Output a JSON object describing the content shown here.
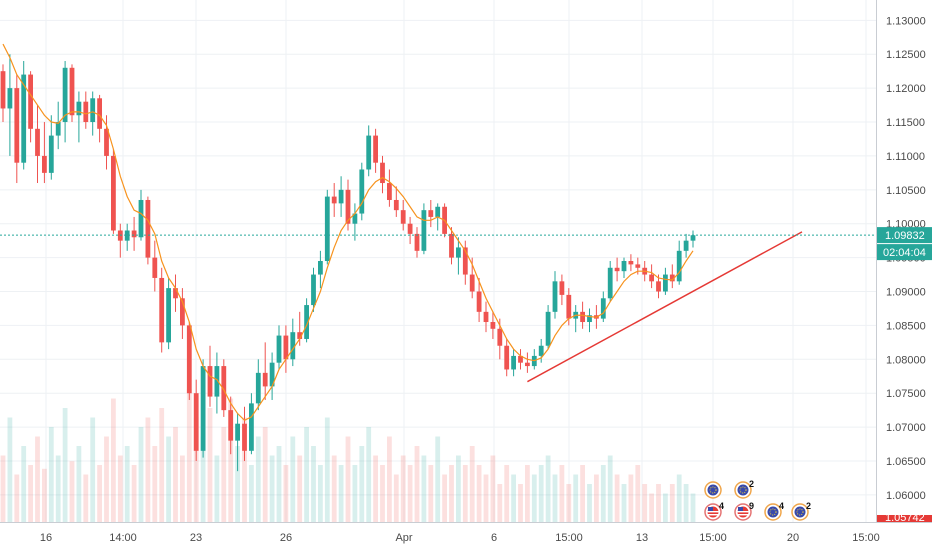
{
  "chart_data": {
    "type": "candlestick",
    "symbol_hint": "",
    "current_price": "1.09832",
    "countdown": "02:04:04",
    "bottom_price_tag": "1.05742",
    "y_ticks": [
      "1.13000",
      "1.12500",
      "1.12000",
      "1.11500",
      "1.11000",
      "1.10500",
      "1.10000",
      "1.09500",
      "1.09000",
      "1.08500",
      "1.08000",
      "1.07500",
      "1.07000",
      "1.06500",
      "1.06000"
    ],
    "y_tick_values": [
      1.13,
      1.125,
      1.12,
      1.115,
      1.11,
      1.105,
      1.1,
      1.095,
      1.09,
      1.085,
      1.08,
      1.075,
      1.07,
      1.065,
      1.06
    ],
    "ylim": [
      1.056,
      1.133
    ],
    "x_ticks": [
      "16",
      "14:00",
      "23",
      "26",
      "Apr",
      "6",
      "15:00",
      "13",
      "15:00",
      "20",
      "15:00"
    ],
    "grid": true,
    "colors": {
      "up": "#26a69a",
      "down": "#ef5350",
      "ma": "#f7931e",
      "trendline": "#e53935",
      "price_line": "#26a69a",
      "price_tag": "#26a69a",
      "bottom_tag": "#e53935",
      "grid": "#eef1f4"
    },
    "candles_ohlc": [
      [
        1.1225,
        1.1235,
        1.115,
        1.117
      ],
      [
        1.117,
        1.125,
        1.11,
        1.12
      ],
      [
        1.12,
        1.122,
        1.106,
        1.109
      ],
      [
        1.109,
        1.124,
        1.108,
        1.122
      ],
      [
        1.122,
        1.1225,
        1.112,
        1.114
      ],
      [
        1.114,
        1.1175,
        1.106,
        1.11
      ],
      [
        1.11,
        1.115,
        1.106,
        1.1075
      ],
      [
        1.1075,
        1.116,
        1.1065,
        1.113
      ],
      [
        1.113,
        1.118,
        1.111,
        1.115
      ],
      [
        1.115,
        1.124,
        1.112,
        1.123
      ],
      [
        1.123,
        1.1235,
        1.115,
        1.116
      ],
      [
        1.116,
        1.1195,
        1.112,
        1.118
      ],
      [
        1.118,
        1.1195,
        1.114,
        1.115
      ],
      [
        1.115,
        1.1195,
        1.113,
        1.1185
      ],
      [
        1.1185,
        1.119,
        1.112,
        1.114
      ],
      [
        1.114,
        1.116,
        1.108,
        1.11
      ],
      [
        1.11,
        1.111,
        1.0985,
        1.099
      ],
      [
        1.099,
        1.1,
        1.095,
        1.0975
      ],
      [
        1.0975,
        1.1,
        1.096,
        1.099
      ],
      [
        1.099,
        1.101,
        1.096,
        1.098
      ],
      [
        1.098,
        1.105,
        1.0975,
        1.1035
      ],
      [
        1.1035,
        1.104,
        1.094,
        1.095
      ],
      [
        1.095,
        1.0975,
        1.09,
        1.092
      ],
      [
        1.092,
        1.0935,
        1.081,
        1.0825
      ],
      [
        1.0825,
        1.092,
        1.0815,
        1.0905
      ],
      [
        1.0905,
        1.0925,
        1.087,
        1.089
      ],
      [
        1.089,
        1.0905,
        1.083,
        1.085
      ],
      [
        1.085,
        1.0855,
        1.074,
        1.075
      ],
      [
        1.075,
        1.077,
        1.065,
        1.0665
      ],
      [
        1.0665,
        1.08,
        1.0655,
        1.079
      ],
      [
        1.079,
        1.082,
        1.073,
        1.0745
      ],
      [
        1.0745,
        1.081,
        1.072,
        1.079
      ],
      [
        1.079,
        1.08,
        1.0715,
        1.0725
      ],
      [
        1.0725,
        1.0745,
        1.066,
        1.068
      ],
      [
        1.068,
        1.072,
        1.0635,
        1.0705
      ],
      [
        1.0705,
        1.073,
        1.065,
        1.0665
      ],
      [
        1.0665,
        1.075,
        1.066,
        1.0735
      ],
      [
        1.0735,
        1.08,
        1.0725,
        1.078
      ],
      [
        1.078,
        1.0825,
        1.074,
        1.076
      ],
      [
        1.076,
        1.081,
        1.074,
        1.0795
      ],
      [
        1.0795,
        1.085,
        1.0785,
        1.0835
      ],
      [
        1.0835,
        1.085,
        1.078,
        1.08
      ],
      [
        1.08,
        1.086,
        1.079,
        1.084
      ],
      [
        1.084,
        1.087,
        1.082,
        1.083
      ],
      [
        1.083,
        1.089,
        1.0825,
        1.088
      ],
      [
        1.088,
        1.0935,
        1.087,
        1.0925
      ],
      [
        1.0925,
        1.096,
        1.0905,
        1.0945
      ],
      [
        1.0945,
        1.105,
        1.094,
        1.104
      ],
      [
        1.104,
        1.106,
        1.101,
        1.103
      ],
      [
        1.103,
        1.107,
        1.101,
        1.105
      ],
      [
        1.105,
        1.1065,
        1.099,
        1.1
      ],
      [
        1.1,
        1.103,
        1.0975,
        1.1015
      ],
      [
        1.1015,
        1.109,
        1.1005,
        1.108
      ],
      [
        1.108,
        1.1145,
        1.107,
        1.113
      ],
      [
        1.113,
        1.114,
        1.1075,
        1.109
      ],
      [
        1.109,
        1.11,
        1.1045,
        1.106
      ],
      [
        1.106,
        1.108,
        1.1025,
        1.1035
      ],
      [
        1.1035,
        1.1055,
        1.101,
        1.102
      ],
      [
        1.102,
        1.1035,
        1.099,
        1.1
      ],
      [
        1.1,
        1.101,
        1.097,
        1.0985
      ],
      [
        1.0985,
        1.0995,
        1.095,
        1.096
      ],
      [
        1.096,
        1.103,
        1.0955,
        1.102
      ],
      [
        1.102,
        1.1035,
        1.0995,
        1.101
      ],
      [
        1.101,
        1.103,
        1.099,
        1.1025
      ],
      [
        1.1025,
        1.103,
        1.098,
        1.0985
      ],
      [
        1.0985,
        1.0995,
        1.094,
        1.095
      ],
      [
        1.095,
        1.098,
        1.0925,
        1.0965
      ],
      [
        1.0965,
        1.0975,
        1.091,
        1.0925
      ],
      [
        1.0925,
        1.095,
        1.089,
        1.09
      ],
      [
        1.09,
        1.092,
        1.0855,
        1.087
      ],
      [
        1.087,
        1.0885,
        1.084,
        1.0855
      ],
      [
        1.0855,
        1.087,
        1.083,
        1.0845
      ],
      [
        1.0845,
        1.086,
        1.08,
        1.082
      ],
      [
        1.082,
        1.083,
        1.0775,
        1.0785
      ],
      [
        1.0785,
        1.0815,
        1.0775,
        1.0805
      ],
      [
        1.0805,
        1.0815,
        1.0785,
        1.0795
      ],
      [
        1.0795,
        1.081,
        1.078,
        1.079
      ],
      [
        1.079,
        1.0815,
        1.0785,
        1.0805
      ],
      [
        1.0805,
        1.083,
        1.0795,
        1.082
      ],
      [
        1.082,
        1.088,
        1.0815,
        1.087
      ],
      [
        1.087,
        1.093,
        1.086,
        1.0915
      ],
      [
        1.0915,
        1.0925,
        1.088,
        1.0895
      ],
      [
        1.0895,
        1.0905,
        1.085,
        1.086
      ],
      [
        1.086,
        1.088,
        1.084,
        1.087
      ],
      [
        1.087,
        1.0885,
        1.0845,
        1.0855
      ],
      [
        1.0855,
        1.0875,
        1.084,
        1.0865
      ],
      [
        1.0865,
        1.088,
        1.0845,
        1.086
      ],
      [
        1.086,
        1.09,
        1.0855,
        1.089
      ],
      [
        1.089,
        1.0945,
        1.0885,
        1.0935
      ],
      [
        1.0935,
        1.095,
        1.0915,
        1.093
      ],
      [
        1.093,
        1.095,
        1.092,
        1.0945
      ],
      [
        1.0945,
        1.0955,
        1.093,
        1.094
      ],
      [
        1.094,
        1.095,
        1.0925,
        1.0935
      ],
      [
        1.0935,
        1.0945,
        1.0915,
        1.0925
      ],
      [
        1.0925,
        1.094,
        1.0905,
        1.0915
      ],
      [
        1.0915,
        1.0925,
        1.089,
        1.09
      ],
      [
        1.09,
        1.0935,
        1.0895,
        1.0925
      ],
      [
        1.0925,
        1.094,
        1.0905,
        1.0915
      ],
      [
        1.0915,
        1.0975,
        1.091,
        1.096
      ],
      [
        1.096,
        1.0985,
        1.095,
        1.0975
      ],
      [
        1.0975,
        1.099,
        1.0965,
        1.0983
      ]
    ],
    "ma": [
      1.1265,
      1.1245,
      1.122,
      1.1205,
      1.119,
      1.1175,
      1.116,
      1.115,
      1.1148,
      1.116,
      1.1165,
      1.1165,
      1.1162,
      1.1165,
      1.116,
      1.1145,
      1.111,
      1.107,
      1.104,
      1.102,
      1.1015,
      1.1005,
      1.0985,
      1.0945,
      1.092,
      1.0905,
      1.0885,
      1.0855,
      1.0815,
      1.079,
      1.0775,
      1.077,
      1.0755,
      1.0735,
      1.072,
      1.071,
      1.0715,
      1.073,
      1.0745,
      1.076,
      1.0785,
      1.08,
      1.0815,
      1.083,
      1.085,
      1.0875,
      1.09,
      1.0935,
      1.0965,
      1.099,
      1.1005,
      1.1015,
      1.103,
      1.105,
      1.1062,
      1.1068,
      1.1062,
      1.1052,
      1.104,
      1.1025,
      1.101,
      1.1005,
      1.1005,
      1.101,
      1.1005,
      1.099,
      1.0975,
      1.096,
      1.094,
      1.0915,
      1.089,
      1.087,
      1.085,
      1.083,
      1.0815,
      1.0805,
      1.08,
      1.0798,
      1.0802,
      1.0815,
      1.0835,
      1.085,
      1.086,
      1.0865,
      1.0865,
      1.0863,
      1.0862,
      1.0868,
      1.0885,
      1.09,
      1.0915,
      1.0925,
      1.093,
      1.093,
      1.0928,
      1.092,
      1.0918,
      1.0917,
      1.0928,
      1.0945,
      1.096
    ],
    "volumes": [
      0.35,
      0.55,
      0.25,
      0.4,
      0.3,
      0.45,
      0.28,
      0.5,
      0.35,
      0.6,
      0.32,
      0.4,
      0.25,
      0.55,
      0.3,
      0.45,
      0.65,
      0.35,
      0.4,
      0.3,
      0.5,
      0.55,
      0.4,
      0.6,
      0.45,
      0.5,
      0.35,
      0.7,
      0.55,
      0.45,
      0.6,
      0.35,
      0.5,
      0.65,
      0.4,
      0.55,
      0.3,
      0.45,
      0.5,
      0.35,
      0.4,
      0.3,
      0.45,
      0.35,
      0.5,
      0.4,
      0.3,
      0.55,
      0.35,
      0.3,
      0.45,
      0.3,
      0.4,
      0.5,
      0.35,
      0.3,
      0.45,
      0.25,
      0.35,
      0.3,
      0.4,
      0.35,
      0.3,
      0.45,
      0.25,
      0.3,
      0.35,
      0.3,
      0.4,
      0.3,
      0.25,
      0.35,
      0.2,
      0.3,
      0.25,
      0.2,
      0.3,
      0.25,
      0.3,
      0.35,
      0.25,
      0.3,
      0.2,
      0.25,
      0.3,
      0.2,
      0.25,
      0.3,
      0.35,
      0.25,
      0.2,
      0.25,
      0.3,
      0.2,
      0.15,
      0.2,
      0.15,
      0.2,
      0.25,
      0.2,
      0.15
    ],
    "trendline": {
      "from": [
        76,
        1.0767
      ],
      "to": [
        110,
        1.0988
      ]
    },
    "events": [
      {
        "label": "",
        "row": 0,
        "col": 0,
        "kind": "eu"
      },
      {
        "label": "2",
        "row": 0,
        "col": 1,
        "kind": "eu"
      },
      {
        "label": "4",
        "row": 1,
        "col": 0,
        "kind": "us"
      },
      {
        "label": "9",
        "row": 1,
        "col": 1,
        "kind": "us"
      },
      {
        "label": "4",
        "row": 1,
        "col": 2,
        "kind": "eu"
      },
      {
        "label": "2",
        "row": 1,
        "col": 3,
        "kind": "eu"
      }
    ]
  }
}
